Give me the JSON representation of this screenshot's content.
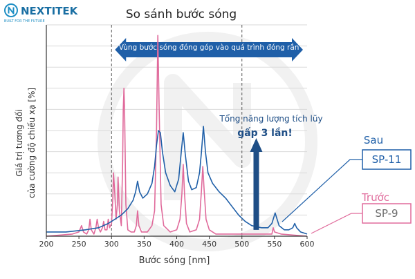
{
  "brand": {
    "name": "NEXTITEK",
    "tagline": "BUILT FOR THE FUTURE",
    "color": "#1f8fc4"
  },
  "colors": {
    "after": "#1f5fa8",
    "before": "#e06a9b",
    "arrow": "#1e4e86",
    "band": "#1f5fa8",
    "grid": "#d9d9d9",
    "axis": "#333333",
    "watermark": "#e6e6e6"
  },
  "chart_data": {
    "type": "line",
    "title": "So sánh bước sóng",
    "xlabel": "Bước sóng [nm]",
    "ylabel": [
      "Giá trị tương đối",
      "của cường độ chiếu xạ [%]"
    ],
    "xlim": [
      200,
      600
    ],
    "ylim": [
      0,
      100
    ],
    "xticks": [
      200,
      250,
      300,
      350,
      400,
      450,
      500,
      550,
      600
    ],
    "grid": true,
    "band": {
      "range": [
        300,
        500
      ],
      "label": "Vùng bước sóng đóng góp vào quá trình đóng rắn"
    },
    "annotation": {
      "line1": "Tổng năng lượng tích lũy",
      "line2": "gấp 3 lần!",
      "x": 522
    },
    "series": [
      {
        "name": "Sau",
        "model": "SP-11",
        "points": [
          [
            200,
            2
          ],
          [
            230,
            2
          ],
          [
            260,
            3
          ],
          [
            280,
            4
          ],
          [
            295,
            6
          ],
          [
            300,
            7
          ],
          [
            305,
            8
          ],
          [
            315,
            10
          ],
          [
            325,
            13
          ],
          [
            333,
            17
          ],
          [
            337,
            21
          ],
          [
            340,
            26
          ],
          [
            343,
            21
          ],
          [
            348,
            18
          ],
          [
            355,
            20
          ],
          [
            362,
            25
          ],
          [
            366,
            33
          ],
          [
            369,
            43
          ],
          [
            372,
            50
          ],
          [
            375,
            49
          ],
          [
            378,
            40
          ],
          [
            383,
            30
          ],
          [
            390,
            24
          ],
          [
            397,
            21
          ],
          [
            403,
            27
          ],
          [
            407,
            40
          ],
          [
            410,
            49
          ],
          [
            413,
            39
          ],
          [
            418,
            26
          ],
          [
            423,
            22
          ],
          [
            430,
            23
          ],
          [
            435,
            30
          ],
          [
            438,
            40
          ],
          [
            441,
            52
          ],
          [
            444,
            40
          ],
          [
            448,
            30
          ],
          [
            455,
            25
          ],
          [
            465,
            21
          ],
          [
            475,
            18
          ],
          [
            485,
            14
          ],
          [
            495,
            10
          ],
          [
            505,
            7
          ],
          [
            515,
            5
          ],
          [
            530,
            4
          ],
          [
            540,
            4
          ],
          [
            546,
            6
          ],
          [
            549,
            9
          ],
          [
            551,
            11
          ],
          [
            553,
            9
          ],
          [
            557,
            5
          ],
          [
            565,
            3
          ],
          [
            572,
            3
          ],
          [
            578,
            4
          ],
          [
            581,
            6
          ],
          [
            584,
            4
          ],
          [
            590,
            2
          ],
          [
            600,
            1
          ]
        ]
      },
      {
        "name": "Trước",
        "model": "SP-9",
        "points": [
          [
            200,
            0
          ],
          [
            240,
            1
          ],
          [
            250,
            2
          ],
          [
            254,
            5
          ],
          [
            257,
            2
          ],
          [
            262,
            1
          ],
          [
            265,
            3
          ],
          [
            267,
            8
          ],
          [
            269,
            3
          ],
          [
            273,
            1
          ],
          [
            276,
            4
          ],
          [
            278,
            8
          ],
          [
            280,
            4
          ],
          [
            283,
            2
          ],
          [
            286,
            4
          ],
          [
            288,
            7
          ],
          [
            290,
            3
          ],
          [
            293,
            3
          ],
          [
            295,
            8
          ],
          [
            297,
            4
          ],
          [
            300,
            6
          ],
          [
            302,
            18
          ],
          [
            303,
            30
          ],
          [
            305,
            20
          ],
          [
            307,
            8
          ],
          [
            309,
            15
          ],
          [
            310,
            28
          ],
          [
            312,
            12
          ],
          [
            315,
            5
          ],
          [
            317,
            35
          ],
          [
            318,
            60
          ],
          [
            319,
            70
          ],
          [
            320,
            60
          ],
          [
            322,
            15
          ],
          [
            325,
            3
          ],
          [
            330,
            2
          ],
          [
            335,
            2
          ],
          [
            338,
            5
          ],
          [
            340,
            12
          ],
          [
            342,
            5
          ],
          [
            346,
            2
          ],
          [
            355,
            2
          ],
          [
            362,
            5
          ],
          [
            366,
            12
          ],
          [
            369,
            50
          ],
          [
            371,
            95
          ],
          [
            373,
            60
          ],
          [
            376,
            15
          ],
          [
            380,
            5
          ],
          [
            390,
            2
          ],
          [
            400,
            3
          ],
          [
            405,
            8
          ],
          [
            408,
            20
          ],
          [
            410,
            34
          ],
          [
            412,
            20
          ],
          [
            415,
            6
          ],
          [
            420,
            2
          ],
          [
            430,
            3
          ],
          [
            435,
            8
          ],
          [
            438,
            22
          ],
          [
            440,
            33
          ],
          [
            442,
            22
          ],
          [
            445,
            8
          ],
          [
            450,
            3
          ],
          [
            460,
            1
          ],
          [
            500,
            1
          ],
          [
            546,
            1
          ],
          [
            548,
            4
          ],
          [
            550,
            2
          ],
          [
            560,
            1
          ],
          [
            600,
            0
          ]
        ]
      }
    ]
  }
}
